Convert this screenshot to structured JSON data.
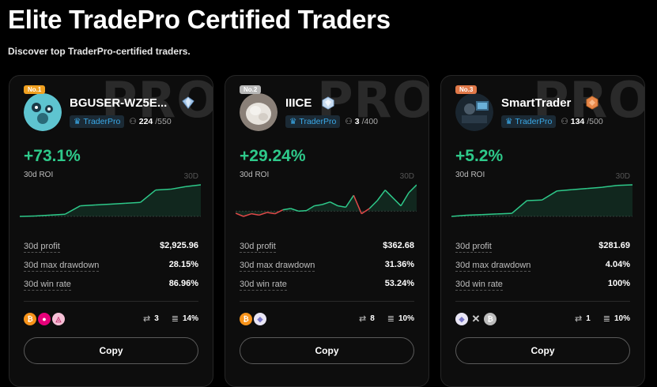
{
  "page": {
    "title": "Elite TradePro Certified Traders",
    "subtitle": "Discover top TraderPro-certified traders."
  },
  "traders": [
    {
      "rank": "No.1",
      "name": "BGUSER-WZ5E...",
      "badge": "TraderPro",
      "followers": "224",
      "followers_max": "/550",
      "roi": "+73.1%",
      "roi_label": "30d ROI",
      "period": "30D",
      "watermark": "PRO",
      "stats": [
        {
          "label": "30d profit",
          "value": "$2,925.96"
        },
        {
          "label": "30d max drawdown",
          "value": "28.15%"
        },
        {
          "label": "30d win rate",
          "value": "86.96%"
        }
      ],
      "coins": [
        "bitcoin-icon",
        "polkadot-icon",
        "pink-token-icon"
      ],
      "copy_count": "3",
      "share_pct": "14%",
      "copy_label": "Copy"
    },
    {
      "rank": "No.2",
      "name": "IIICE",
      "badge": "TraderPro",
      "followers": "3",
      "followers_max": "/400",
      "roi": "+29.24%",
      "roi_label": "30d ROI",
      "period": "30D",
      "watermark": "PRO",
      "stats": [
        {
          "label": "30d profit",
          "value": "$362.68"
        },
        {
          "label": "30d max drawdown",
          "value": "31.36%"
        },
        {
          "label": "30d win rate",
          "value": "53.24%"
        }
      ],
      "coins": [
        "bitcoin-icon",
        "ethereum-icon"
      ],
      "copy_count": "8",
      "share_pct": "10%",
      "copy_label": "Copy"
    },
    {
      "rank": "No.3",
      "name": "SmartTrader",
      "badge": "TraderPro",
      "followers": "134",
      "followers_max": "/500",
      "roi": "+5.2%",
      "roi_label": "30d ROI",
      "period": "30D",
      "watermark": "PRO",
      "stats": [
        {
          "label": "30d profit",
          "value": "$281.69"
        },
        {
          "label": "30d max drawdown",
          "value": "4.04%"
        },
        {
          "label": "30d win rate",
          "value": "100%"
        }
      ],
      "coins": [
        "ethereum-icon",
        "x-icon",
        "grey-token-icon"
      ],
      "copy_count": "1",
      "share_pct": "10%",
      "copy_label": "Copy"
    }
  ],
  "colors": {
    "positive": "#2ec98a",
    "negative": "#e04848",
    "accent": "#3aa9e8"
  },
  "sparklines": [
    [
      0,
      0.5,
      1.5,
      2.5,
      12,
      13,
      14,
      15,
      16,
      30,
      31,
      34,
      36
    ],
    [
      -0.8,
      -2,
      -1,
      -1.5,
      -0.5,
      -1,
      0.5,
      1,
      0,
      0.2,
      2,
      2.5,
      3.5,
      2,
      1.5,
      6,
      -1,
      1,
      4,
      8,
      5,
      2,
      7,
      10
    ],
    [
      0,
      0.2,
      0.3,
      0.4,
      0.5,
      2.6,
      2.7,
      4.2,
      4.4,
      4.6,
      4.8,
      5.1,
      5.2
    ]
  ]
}
